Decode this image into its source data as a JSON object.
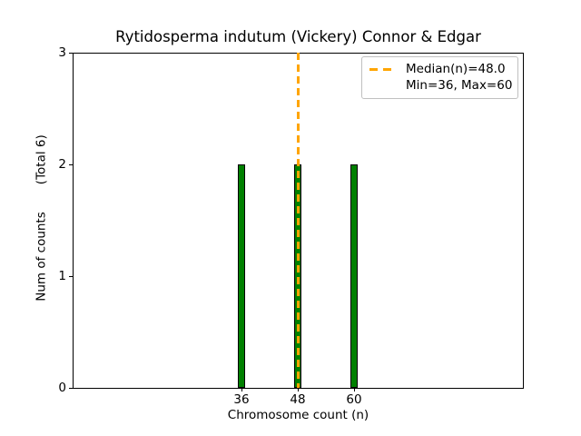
{
  "figure_title": "Rytidosperma indutum (Vickery) Connor & Edgar",
  "axes": {
    "xlabel": "Chromosome count (n)",
    "ylabel": "Num of counts       (Total 6)"
  },
  "legend": {
    "items": [
      {
        "label": "Median(n)=48.0",
        "sample": "orange-dashed-line"
      },
      {
        "label": "Min=36, Max=60",
        "sample": "none"
      }
    ],
    "position": "upper right"
  },
  "chart_data": {
    "type": "bar",
    "title": "Rytidosperma indutum (Vickery) Connor & Edgar",
    "xlabel": "Chromosome count (n)",
    "ylabel": "Num of counts (Total 6)",
    "categories": [
      36,
      48,
      60
    ],
    "values": [
      2,
      2,
      2
    ],
    "total_counts": 6,
    "median_n": 48.0,
    "min_n": 36,
    "max_n": 60,
    "xticks": [
      36,
      48,
      60
    ],
    "yticks": [
      0,
      1,
      2,
      3
    ],
    "xlim": [
      0,
      96
    ],
    "ylim": [
      0,
      3
    ],
    "grid": false,
    "legend_position": "upper right",
    "legend_labels": [
      "Median(n)=48.0",
      "Min=36, Max=60"
    ],
    "colors": {
      "bar_fill": "#008000",
      "bar_edge": "#000000",
      "median_line": "#FFA500",
      "legend_border": "#c0c0c0",
      "text": "#000000",
      "spine": "#000000"
    }
  }
}
